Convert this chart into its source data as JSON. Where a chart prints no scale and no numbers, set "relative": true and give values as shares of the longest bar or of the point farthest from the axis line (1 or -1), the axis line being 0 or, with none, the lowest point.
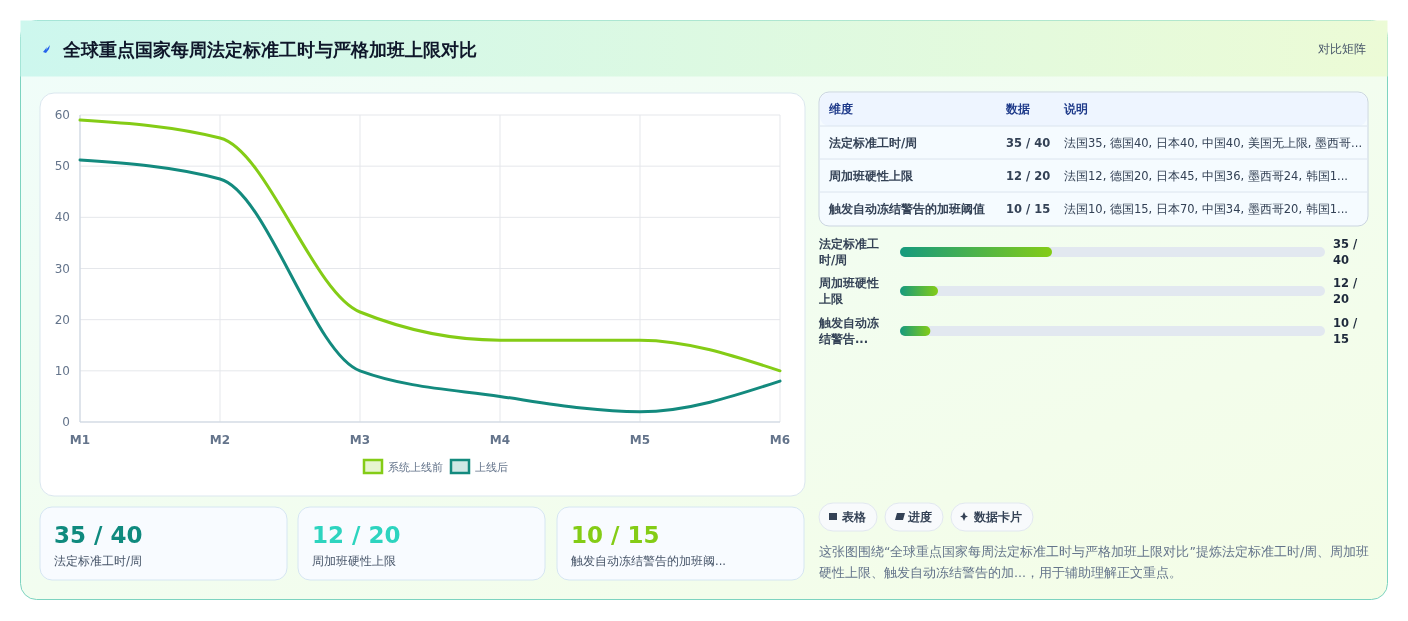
{
  "chart_data": [
    {
      "type": "other",
      "title": "全球重点国家每周法定标准工时与严格加班上限对比",
      "subtitle": "对比矩阵"
    },
    {
      "type": "line",
      "categories": [
        "M1",
        "M2",
        "M3",
        "M4",
        "M5",
        "M6"
      ],
      "series": [
        {
          "name": "系统上线前",
          "color": "#84cc16",
          "values": [
            59,
            55.5,
            21.5,
            16,
            16,
            10
          ]
        },
        {
          "name": "上线后",
          "color": "#138a7e",
          "values": [
            51.2,
            47.5,
            10,
            5,
            2,
            8
          ]
        }
      ],
      "ylim": [
        0,
        60
      ],
      "yticks": [
        0,
        10,
        20,
        30,
        40,
        50,
        60
      ],
      "grid": true,
      "legend": "bottom",
      "marker": "none",
      "line_style": "solid"
    },
    {
      "type": "other",
      "annotations": [
        "维度",
        "数据",
        "说明",
        "法定标准工时/周",
        "35 / 40",
        "法国35, 德国40, 日本40, 中国40, 美国无上限, 墨西哥...",
        "周加班硬性上限",
        "12 / 20",
        "法国12, 德国20, 日本45, 中国36, 墨西哥24, 韩国1...",
        "触发自动冻结警告的加班阈值",
        "10 / 15",
        "法国10, 德国15, 日本70, 中国34, 墨西哥20, 韩国1..."
      ]
    },
    {
      "type": "bar",
      "orientation": "horizontal",
      "relative": true,
      "categories": [
        "法定标准工时/周",
        "周加班硬性上限",
        "触发自动冻结警告..."
      ],
      "series": [
        {
          "color": "#159a7e",
          "values": [
            1,
            0.25,
            0.2
          ]
        }
      ],
      "value_labels": [
        "35 / 40",
        "12 / 20",
        "10 / 15"
      ]
    },
    {
      "type": "other",
      "annotations": [
        "35 / 40",
        "法定标准工时/周",
        "12 / 20",
        "周加班硬性上限",
        "10 / 15",
        "触发自动冻结警告的加班阈..."
      ]
    },
    {
      "type": "other",
      "annotations": [
        "表格",
        "进度",
        "数据卡片",
        "这张图围绕“全球重点国家每周法定标准工时与严格加班上限对比”提炼法定标准工时/周、周加班硬性上限、触发自动冻结警告的加...，用于辅助理解正文重点。"
      ]
    }
  ]
}
